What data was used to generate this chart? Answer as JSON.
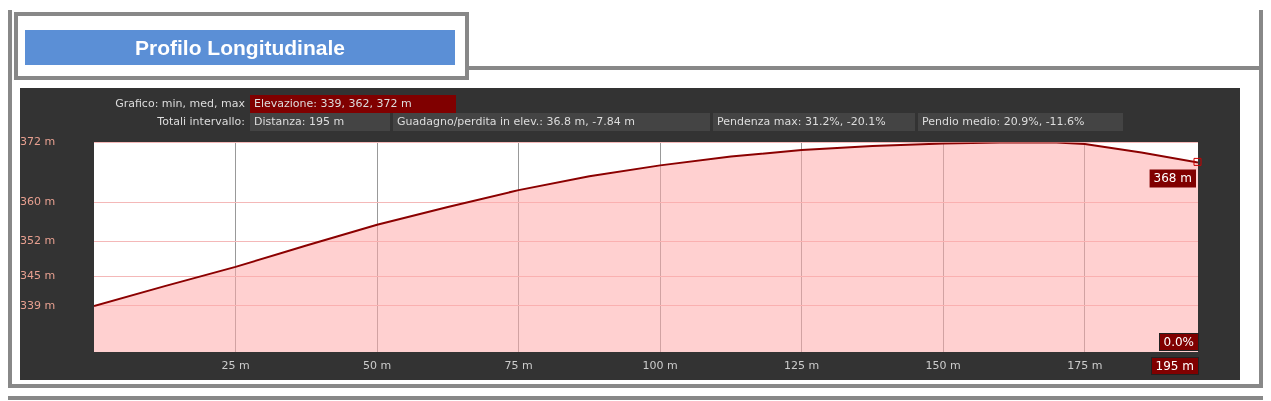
{
  "chart_data": {
    "type": "area",
    "title": "Profilo Longitudinale",
    "x": [
      0,
      12.5,
      25,
      37.5,
      50,
      62.5,
      75,
      87.5,
      100,
      112.5,
      125,
      137.5,
      150,
      160,
      170,
      175,
      185,
      195
    ],
    "series": [
      {
        "color": "#8b0000",
        "values": [
          339,
          343,
          346.9,
          351.2,
          355.4,
          359,
          362.4,
          365.2,
          367.4,
          369.2,
          370.5,
          371.3,
          371.8,
          372,
          372,
          371.7,
          370,
          368
        ]
      }
    ],
    "xlim": [
      0,
      195
    ],
    "xticks": [
      {
        "value": 25,
        "label": "25 m"
      },
      {
        "value": 50,
        "label": "50 m"
      },
      {
        "value": 75,
        "label": "75 m"
      },
      {
        "value": 100,
        "label": "100 m"
      },
      {
        "value": 125,
        "label": "125 m"
      },
      {
        "value": 150,
        "label": "150 m"
      },
      {
        "value": 175,
        "label": "175 m"
      }
    ],
    "ylim": [
      329.7,
      372
    ],
    "yticks": [
      {
        "value": 339,
        "label": "339 m"
      },
      {
        "value": 345,
        "label": "345 m"
      },
      {
        "value": 352,
        "label": "352 m"
      },
      {
        "value": 360,
        "label": "360 m"
      },
      {
        "value": 372,
        "label": "372 m"
      }
    ],
    "grid": true,
    "legend": false,
    "marker": "none",
    "annotations": [
      "Grafico: min, med, max",
      "Elevazione: 339, 362, 372 m",
      "Totali intervallo:",
      "Distanza: 195 m",
      "Guadagno/perdita in elev.: 36.8 m, -7.84 m",
      "Pendenza max: 31.2%, -20.1%",
      "Pendio medio: 20.9%, -11.6%",
      "0.0%",
      "195 m",
      {
        "text": "368 m",
        "x": 195,
        "y": 368
      }
    ]
  }
}
